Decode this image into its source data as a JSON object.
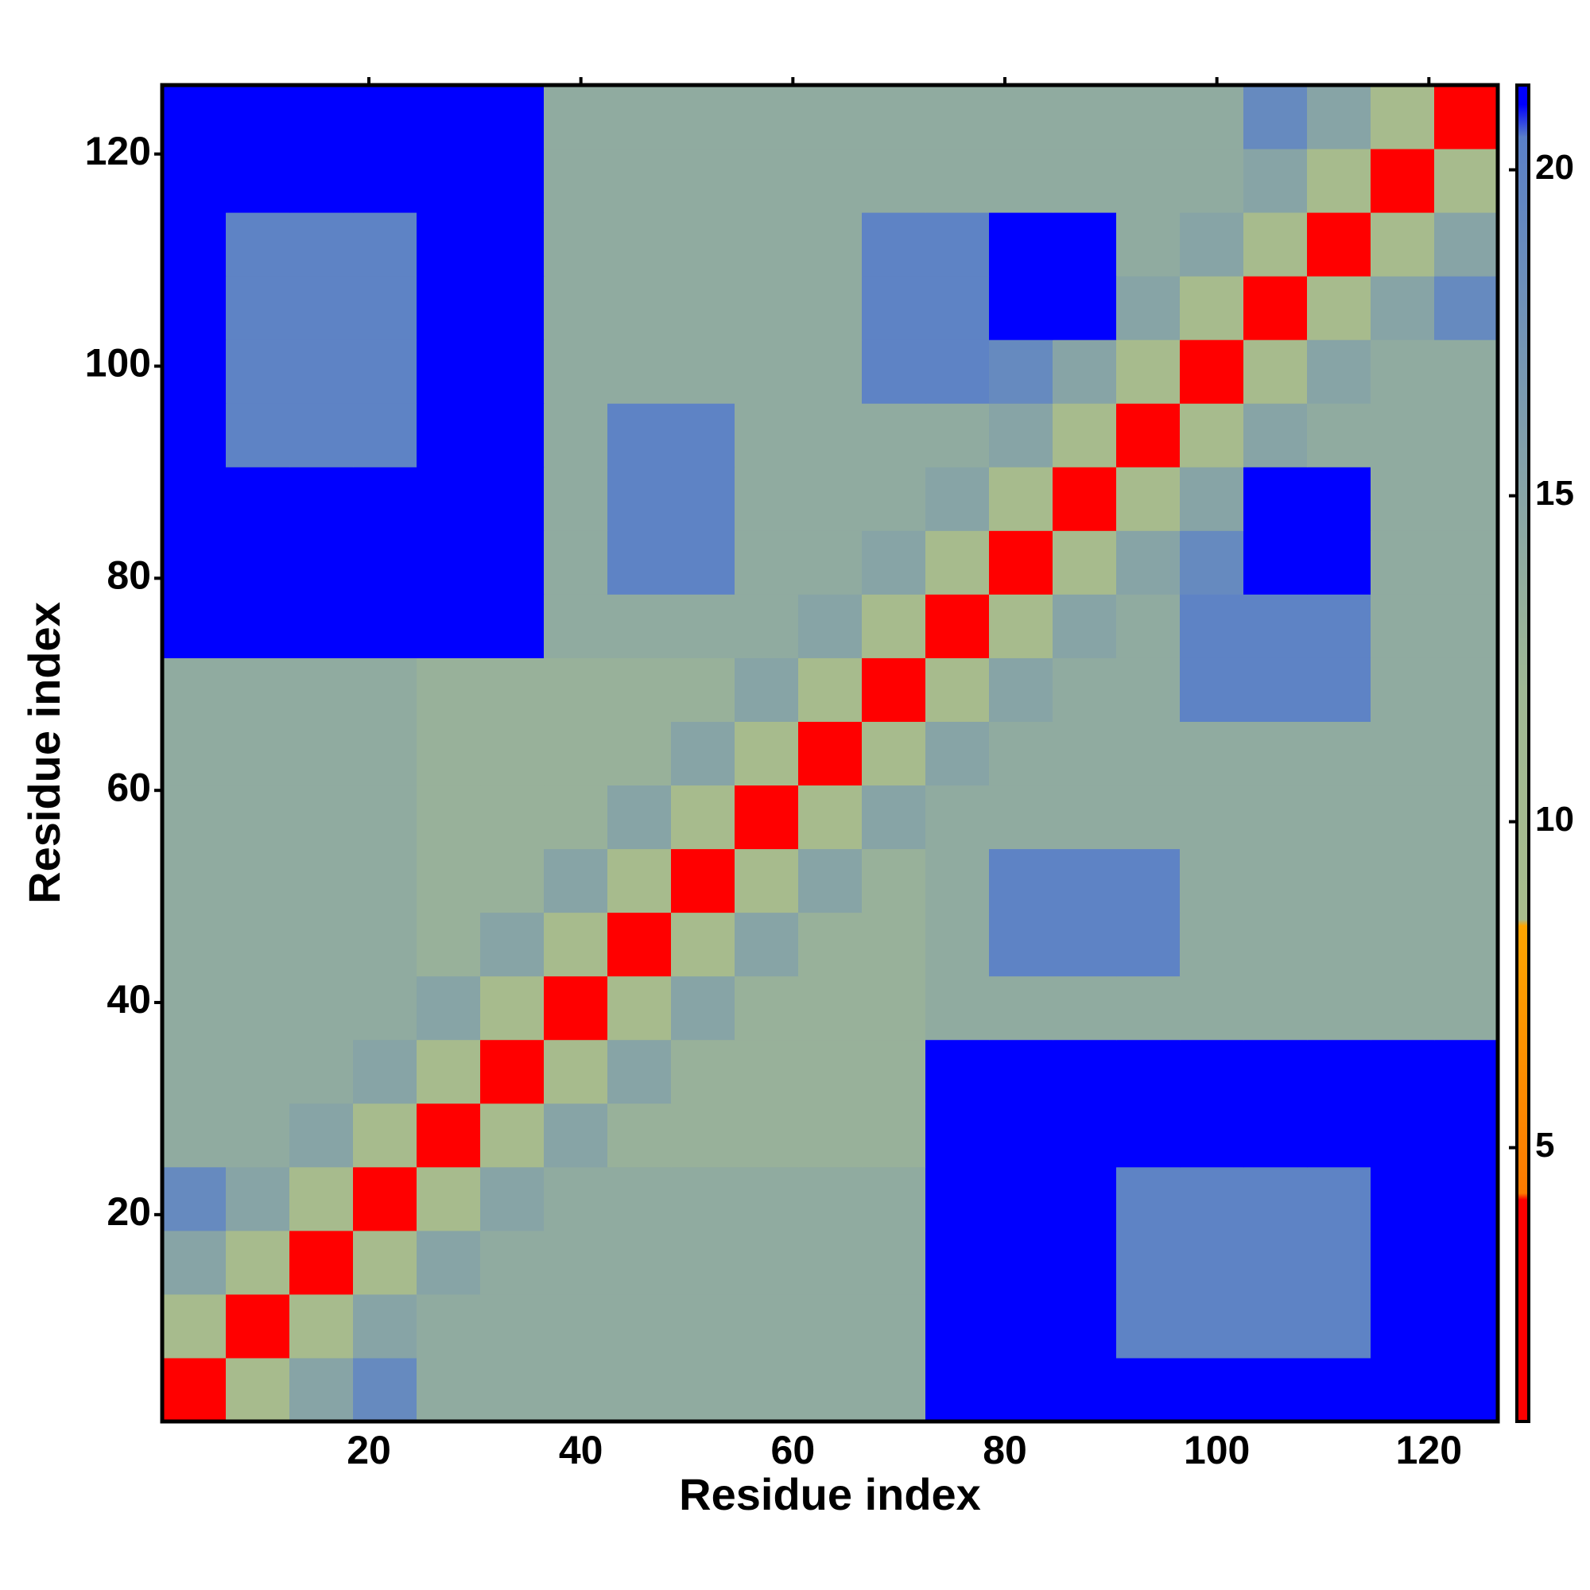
{
  "chart_data": {
    "type": "heatmap",
    "xlabel": "Residue index",
    "ylabel": "Residue index",
    "xlim": [
      0.5,
      126.5
    ],
    "ylim": [
      0.5,
      126.5
    ],
    "xticks": [
      20,
      40,
      60,
      80,
      100,
      120
    ],
    "yticks": [
      20,
      40,
      60,
      80,
      100,
      120
    ],
    "x_edges": [
      0.5,
      6.5,
      12.5,
      18.5,
      24.5,
      30.5,
      36.5,
      42.5,
      48.5,
      54.5,
      60.5,
      66.5,
      72.5,
      78.5,
      84.5,
      90.5,
      96.5,
      102.5,
      108.5,
      114.5,
      120.5,
      126.5
    ],
    "y_edges": [
      0.5,
      6.5,
      12.5,
      18.5,
      24.5,
      30.5,
      36.5,
      42.5,
      48.5,
      54.5,
      60.5,
      66.5,
      72.5,
      78.5,
      84.5,
      90.5,
      96.5,
      102.5,
      108.5,
      114.5,
      120.5,
      126.5
    ],
    "zlim": [
      0.8,
      21.3
    ],
    "zticks": [
      5,
      10,
      15,
      20
    ],
    "colorscale": [
      [
        0.8,
        "#ff0000"
      ],
      [
        4.2,
        "#ff0000"
      ],
      [
        4.3,
        "#ff7a00"
      ],
      [
        8.4,
        "#ffa500"
      ],
      [
        8.5,
        "#a8bc8c"
      ],
      [
        12,
        "#a0b894"
      ],
      [
        20.5,
        "#5a80c8"
      ],
      [
        21,
        "#0000ff"
      ],
      [
        21.3,
        "#0000ff"
      ]
    ],
    "z": [
      [
        4,
        9,
        15,
        19,
        14,
        14,
        14,
        14,
        14,
        14,
        14,
        14,
        21,
        21,
        21,
        21,
        21,
        21,
        21,
        21,
        21
      ],
      [
        9,
        4,
        9,
        15,
        14,
        14,
        14,
        14,
        14,
        14,
        14,
        14,
        21,
        21,
        21,
        20,
        20,
        20,
        20,
        21,
        21
      ],
      [
        15,
        9,
        4,
        9,
        15,
        14,
        14,
        14,
        14,
        14,
        14,
        14,
        21,
        21,
        21,
        20,
        20,
        20,
        20,
        21,
        21
      ],
      [
        19,
        15,
        9,
        4,
        9,
        15,
        14,
        14,
        14,
        14,
        14,
        14,
        21,
        21,
        21,
        20,
        20,
        20,
        20,
        21,
        21
      ],
      [
        14,
        14,
        15,
        9,
        4,
        9,
        15,
        13,
        13,
        13,
        13,
        13,
        21,
        21,
        21,
        21,
        21,
        21,
        21,
        21,
        21
      ],
      [
        14,
        14,
        14,
        15,
        9,
        4,
        9,
        15,
        13,
        13,
        13,
        13,
        21,
        21,
        21,
        21,
        21,
        21,
        21,
        21,
        21
      ],
      [
        14,
        14,
        14,
        14,
        15,
        9,
        4,
        9,
        15,
        13,
        13,
        13,
        14,
        14,
        14,
        14,
        14,
        14,
        14,
        14,
        14
      ],
      [
        14,
        14,
        14,
        14,
        13,
        15,
        9,
        4,
        9,
        15,
        13,
        13,
        14,
        20,
        20,
        20,
        14,
        14,
        14,
        14,
        14
      ],
      [
        14,
        14,
        14,
        14,
        13,
        13,
        15,
        9,
        4,
        9,
        15,
        13,
        14,
        20,
        20,
        20,
        14,
        14,
        14,
        14,
        14
      ],
      [
        14,
        14,
        14,
        14,
        13,
        13,
        13,
        15,
        9,
        4,
        9,
        15,
        14,
        14,
        14,
        14,
        14,
        14,
        14,
        14,
        14
      ],
      [
        14,
        14,
        14,
        14,
        13,
        13,
        13,
        13,
        15,
        9,
        4,
        9,
        15,
        14,
        14,
        14,
        14,
        14,
        14,
        14,
        14
      ],
      [
        14,
        14,
        14,
        14,
        13,
        13,
        13,
        13,
        13,
        15,
        9,
        4,
        9,
        15,
        14,
        14,
        20,
        20,
        20,
        14,
        14
      ],
      [
        21,
        21,
        21,
        21,
        21,
        21,
        14,
        14,
        14,
        14,
        15,
        9,
        4,
        9,
        15,
        14,
        20,
        20,
        20,
        14,
        14
      ],
      [
        21,
        21,
        21,
        21,
        21,
        21,
        14,
        20,
        20,
        14,
        14,
        15,
        9,
        4,
        9,
        15,
        19,
        21,
        21,
        14,
        14
      ],
      [
        21,
        21,
        21,
        21,
        21,
        21,
        14,
        20,
        20,
        14,
        14,
        14,
        15,
        9,
        4,
        9,
        15,
        21,
        21,
        14,
        14
      ],
      [
        21,
        20,
        20,
        20,
        21,
        21,
        14,
        20,
        20,
        14,
        14,
        14,
        14,
        15,
        9,
        4,
        9,
        15,
        14,
        14,
        14
      ],
      [
        21,
        20,
        20,
        20,
        21,
        21,
        14,
        14,
        14,
        14,
        14,
        20,
        20,
        19,
        15,
        9,
        4,
        9,
        15,
        14,
        14
      ],
      [
        21,
        20,
        20,
        20,
        21,
        21,
        14,
        14,
        14,
        14,
        14,
        20,
        20,
        21,
        21,
        15,
        9,
        4,
        9,
        15,
        19
      ],
      [
        21,
        20,
        20,
        20,
        21,
        21,
        14,
        14,
        14,
        14,
        14,
        20,
        20,
        21,
        21,
        14,
        15,
        9,
        4,
        9,
        15
      ],
      [
        21,
        21,
        21,
        21,
        21,
        21,
        14,
        14,
        14,
        14,
        14,
        14,
        14,
        14,
        14,
        14,
        14,
        15,
        9,
        4,
        9
      ],
      [
        21,
        21,
        21,
        21,
        21,
        21,
        14,
        14,
        14,
        14,
        14,
        14,
        14,
        14,
        14,
        14,
        14,
        19,
        15,
        9,
        4
      ]
    ]
  }
}
